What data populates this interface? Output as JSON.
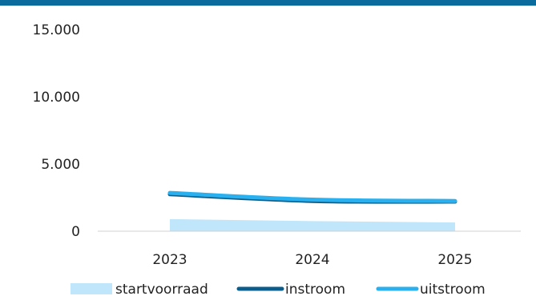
{
  "colors": {
    "top_bar": "#0b6b9c",
    "startvoorraad": "#bfe6fa",
    "instroom": "#0b5e8c",
    "uitstroom": "#2ab0ee",
    "axis": "#d0d0d0"
  },
  "chart_data": {
    "type": "area",
    "title": "",
    "xlabel": "",
    "ylabel": "",
    "categories": [
      "2023",
      "2024",
      "2025"
    ],
    "ylim": [
      0,
      15000
    ],
    "y_ticks": [
      {
        "value": 0,
        "label": "0"
      },
      {
        "value": 5000,
        "label": "5.000"
      },
      {
        "value": 10000,
        "label": "10.000"
      },
      {
        "value": 15000,
        "label": "15.000"
      }
    ],
    "grid": false,
    "legend_position": "bottom",
    "series": [
      {
        "name": "startvoorraad",
        "kind": "area",
        "values": [
          900,
          750,
          650
        ]
      },
      {
        "name": "instroom",
        "kind": "line",
        "values": [
          2750,
          2250,
          2200
        ]
      },
      {
        "name": "uitstroom",
        "kind": "line",
        "values": [
          2850,
          2350,
          2250
        ]
      }
    ]
  }
}
